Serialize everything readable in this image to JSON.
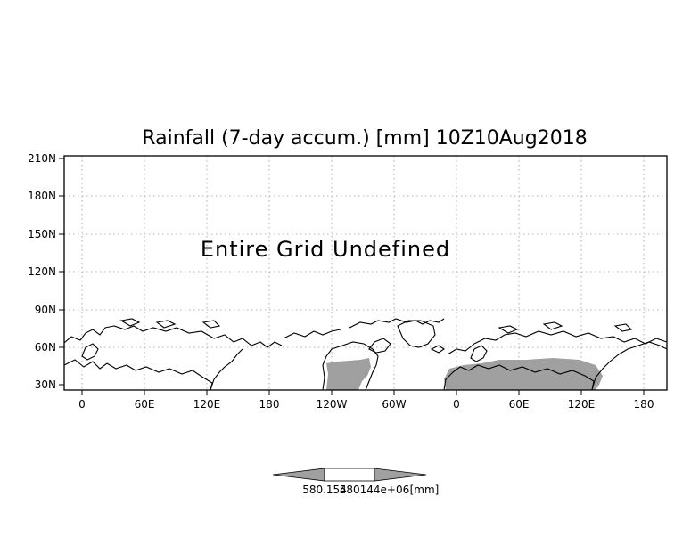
{
  "map": {
    "title": "Rainfall (7-day accum.) [mm] 10Z10Aug2018",
    "overlay_message": "Entire Grid Undefined",
    "lat_labels": [
      "210N",
      "180N",
      "150N",
      "120N",
      "90N",
      "60N",
      "30N"
    ],
    "lon_labels": [
      "0",
      "60E",
      "120E",
      "180",
      "120W",
      "60W",
      "0",
      "60E",
      "120E",
      "180"
    ],
    "colorbar": {
      "low_label": "580.154",
      "mid_label": "580144e+06",
      "unit_label": "[mm]"
    },
    "colors": {
      "land_shading": "#a0a0a0",
      "colorbar_ends": "#a0a0a0",
      "colorbar_middle": "#ffffff"
    }
  }
}
